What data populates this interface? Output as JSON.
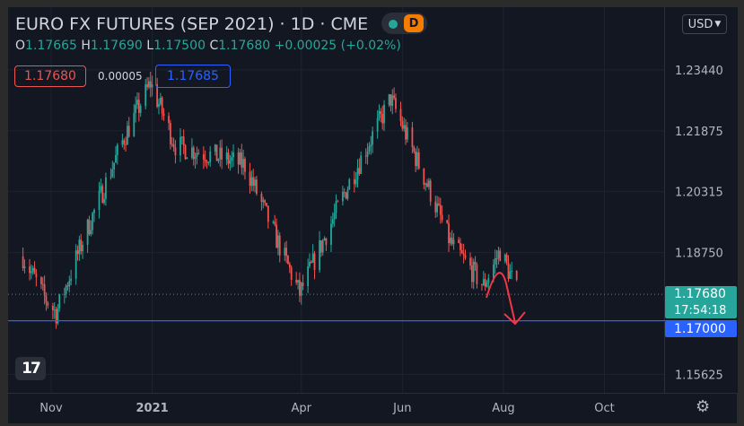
{
  "header": {
    "title": "EURO FX FUTURES (SEP 2021) · 1D · CME",
    "ohlc": {
      "o_label": "O",
      "o_value": "1.17665",
      "h_label": "H",
      "h_value": "1.17690",
      "l_label": "L",
      "l_value": "1.17500",
      "c_label": "C",
      "c_value": "1.17680",
      "change": "+0.00025 (+0.02%)"
    },
    "badge": "D"
  },
  "order": {
    "sell": "1.17680",
    "spread": "0.00005",
    "buy": "1.17685"
  },
  "currency_button": "USD",
  "labels": {
    "last_price": "1.17680",
    "countdown": "17:54:18",
    "level_price": "1.17000"
  },
  "colors": {
    "up": "#26a69a",
    "down": "#ef5350",
    "level_line": "#2962ff",
    "annotation": "#f23645"
  },
  "chart_data": {
    "type": "candlestick",
    "title": "EURO FX FUTURES (SEP 2021)",
    "y_tick_labels": [
      "1.15625",
      "1.17000",
      "1.18750",
      "1.20315",
      "1.21875",
      "1.23440"
    ],
    "x_tick_labels": [
      "Nov",
      "2021",
      "Apr",
      "Jun",
      "Aug",
      "Oct"
    ],
    "ylim": [
      1.1515,
      1.2505
    ],
    "close_path": [
      [
        "2020-10-15",
        1.1865
      ],
      [
        "2020-10-28",
        1.176
      ],
      [
        "2020-11-04",
        1.172
      ],
      [
        "2020-11-20",
        1.1905
      ],
      [
        "2020-12-15",
        1.217
      ],
      [
        "2020-12-31",
        1.231
      ],
      [
        "2021-01-15",
        1.215
      ],
      [
        "2021-02-10",
        1.212
      ],
      [
        "2021-02-26",
        1.21
      ],
      [
        "2021-03-31",
        1.177
      ],
      [
        "2021-04-30",
        1.2055
      ],
      [
        "2021-05-25",
        1.227
      ],
      [
        "2021-06-16",
        1.205
      ],
      [
        "2021-06-30",
        1.19
      ],
      [
        "2021-07-20",
        1.179
      ],
      [
        "2021-07-30",
        1.188
      ],
      [
        "2021-08-10",
        1.1768
      ]
    ],
    "last_price": 1.1768,
    "horizontal_line": 1.17,
    "grid": true,
    "annotation": "curved arrow pointing down"
  }
}
